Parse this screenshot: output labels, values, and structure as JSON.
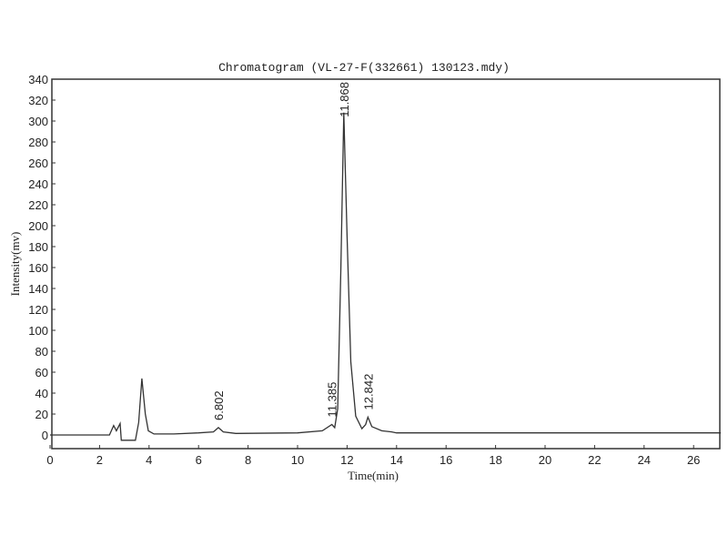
{
  "chart_data": {
    "type": "line",
    "title": "Chromatogram (VL-27-F(332661) 130123.mdy)",
    "xlabel": "Time(min)",
    "ylabel": "Intensity(mv)",
    "xlim": [
      0,
      27.1
    ],
    "ylim": [
      -12,
      340
    ],
    "xticks": [
      0,
      2,
      4,
      6,
      8,
      10,
      12,
      14,
      16,
      18,
      20,
      22,
      24,
      26
    ],
    "yticks": [
      0,
      20,
      40,
      60,
      80,
      100,
      120,
      140,
      160,
      180,
      200,
      220,
      240,
      260,
      280,
      300,
      320,
      340
    ],
    "grid": false,
    "line_color": "#333333",
    "series": [
      {
        "x": [
          0,
          2.4,
          2.57,
          2.68,
          2.83,
          2.88,
          3.1,
          3.45,
          3.58,
          3.71,
          3.85,
          3.97,
          4.2,
          5,
          6,
          6.6,
          6.8,
          7.0,
          7.5,
          10,
          11,
          11.385,
          11.5,
          11.62,
          11.75,
          11.868,
          12.0,
          12.15,
          12.35,
          12.6,
          12.75,
          12.842,
          13.0,
          13.4,
          13.8,
          14,
          16,
          20,
          24,
          27.1
        ],
        "y": [
          0,
          0,
          9,
          4,
          11,
          -5,
          -5,
          -5,
          12,
          54,
          20,
          4,
          1,
          1,
          2,
          3,
          7,
          3,
          1.5,
          2,
          4,
          10,
          7,
          25,
          160,
          308,
          190,
          70,
          18,
          6,
          10,
          17,
          8,
          4,
          3,
          2,
          2,
          2,
          2,
          2
        ]
      }
    ],
    "peak_labels": [
      {
        "x": 6.802,
        "label": "6.802"
      },
      {
        "x": 11.385,
        "label": "11.385"
      },
      {
        "x": 11.868,
        "label": "11.868"
      },
      {
        "x": 12.842,
        "label": "12.842"
      }
    ]
  }
}
